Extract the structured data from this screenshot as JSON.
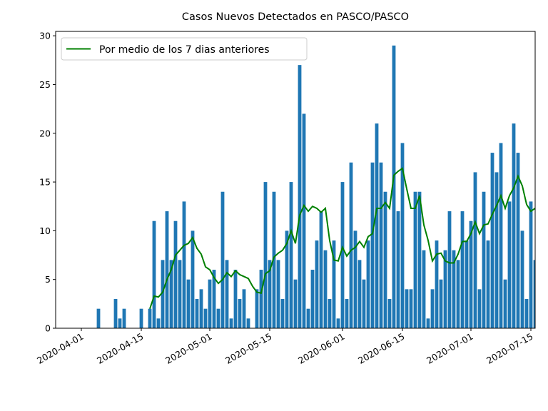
{
  "chart_data": {
    "type": "bar",
    "title": "Casos Nuevos Detectados en PASCO/PASCO",
    "x": [
      "2020-04-05",
      "2020-04-06",
      "2020-04-07",
      "2020-04-08",
      "2020-04-09",
      "2020-04-10",
      "2020-04-11",
      "2020-04-12",
      "2020-04-13",
      "2020-04-14",
      "2020-04-15",
      "2020-04-16",
      "2020-04-17",
      "2020-04-18",
      "2020-04-19",
      "2020-04-20",
      "2020-04-21",
      "2020-04-22",
      "2020-04-23",
      "2020-04-24",
      "2020-04-25",
      "2020-04-26",
      "2020-04-27",
      "2020-04-28",
      "2020-04-29",
      "2020-04-30",
      "2020-05-01",
      "2020-05-02",
      "2020-05-03",
      "2020-05-04",
      "2020-05-05",
      "2020-05-06",
      "2020-05-07",
      "2020-05-08",
      "2020-05-09",
      "2020-05-10",
      "2020-05-11",
      "2020-05-12",
      "2020-05-13",
      "2020-05-14",
      "2020-05-15",
      "2020-05-16",
      "2020-05-17",
      "2020-05-18",
      "2020-05-19",
      "2020-05-20",
      "2020-05-21",
      "2020-05-22",
      "2020-05-23",
      "2020-05-24",
      "2020-05-25",
      "2020-05-26",
      "2020-05-27",
      "2020-05-28",
      "2020-05-29",
      "2020-05-30",
      "2020-05-31",
      "2020-06-01",
      "2020-06-02",
      "2020-06-03",
      "2020-06-04",
      "2020-06-05",
      "2020-06-06",
      "2020-06-07",
      "2020-06-08",
      "2020-06-09",
      "2020-06-10",
      "2020-06-11",
      "2020-06-12",
      "2020-06-13",
      "2020-06-14",
      "2020-06-15",
      "2020-06-16",
      "2020-06-17",
      "2020-06-18",
      "2020-06-19",
      "2020-06-20",
      "2020-06-21",
      "2020-06-22",
      "2020-06-23",
      "2020-06-24",
      "2020-06-25",
      "2020-06-26",
      "2020-06-27",
      "2020-06-28",
      "2020-06-29",
      "2020-06-30",
      "2020-07-01",
      "2020-07-02",
      "2020-07-03",
      "2020-07-04",
      "2020-07-05",
      "2020-07-06",
      "2020-07-07",
      "2020-07-08",
      "2020-07-09",
      "2020-07-10",
      "2020-07-11",
      "2020-07-12",
      "2020-07-13",
      "2020-07-14",
      "2020-07-15",
      "2020-07-16"
    ],
    "values": [
      2,
      0,
      0,
      0,
      3,
      1,
      2,
      0,
      0,
      0,
      2,
      0,
      2,
      11,
      1,
      7,
      12,
      7,
      11,
      7,
      13,
      5,
      10,
      3,
      4,
      2,
      5,
      6,
      2,
      14,
      7,
      1,
      6,
      3,
      4,
      1,
      0,
      4,
      6,
      15,
      7,
      14,
      7,
      3,
      10,
      15,
      5,
      27,
      22,
      2,
      6,
      9,
      12,
      8,
      3,
      9,
      1,
      15,
      3,
      17,
      10,
      7,
      5,
      9,
      17,
      21,
      17,
      14,
      3,
      29,
      12,
      19,
      4,
      4,
      14,
      14,
      8,
      1,
      4,
      9,
      5,
      8,
      12,
      8,
      7,
      12,
      9,
      11,
      16,
      4,
      14,
      9,
      18,
      16,
      19,
      5,
      13,
      21,
      18,
      10,
      3,
      13,
      7
    ],
    "color": "#1f77b4",
    "line": {
      "name": "Por medio de los 7 dias anteriores",
      "color": "#008000",
      "values": [
        null,
        null,
        null,
        null,
        null,
        null,
        null,
        null,
        null,
        null,
        null,
        null,
        2,
        3.3,
        3.2,
        3.7,
        5,
        6,
        7.5,
        8,
        8.5,
        8.7,
        9.3,
        8.2,
        7.6,
        6.3,
        6,
        5.2,
        4.6,
        5,
        5.7,
        5.3,
        5.9,
        5.5,
        5.3,
        5.1,
        4.3,
        3.7,
        3.6,
        5.6,
        5.9,
        7.3,
        7.7,
        8,
        8.7,
        10,
        8.7,
        11.6,
        12.6,
        12,
        12.5,
        12.3,
        11.9,
        12.3,
        9,
        7,
        6.9,
        8.3,
        7.4,
        8,
        8.3,
        8.9,
        8.3,
        9.4,
        9.7,
        12.3,
        12.3,
        12.9,
        12.3,
        15.7,
        16.1,
        16.4,
        14.3,
        12.3,
        12.3,
        13.6,
        10.6,
        9,
        6.9,
        7.6,
        7.7,
        6.9,
        6.7,
        6.7,
        7.6,
        8.9,
        8.9,
        9.7,
        10.9,
        9.7,
        10.6,
        10.7,
        11.7,
        12.6,
        13.6,
        12.3,
        13.6,
        14.4,
        15.6,
        14.6,
        12.7,
        12,
        12.3
      ]
    },
    "xlim": [
      "2020-03-26",
      "2020-07-16"
    ],
    "xticks": [
      "2020-04-01",
      "2020-04-15",
      "2020-05-01",
      "2020-05-15",
      "2020-06-01",
      "2020-06-15",
      "2020-07-01",
      "2020-07-15"
    ],
    "ylim": [
      0,
      30.45
    ],
    "yticks": [
      0,
      5,
      10,
      15,
      20,
      25,
      30
    ],
    "legend": "upper left"
  }
}
